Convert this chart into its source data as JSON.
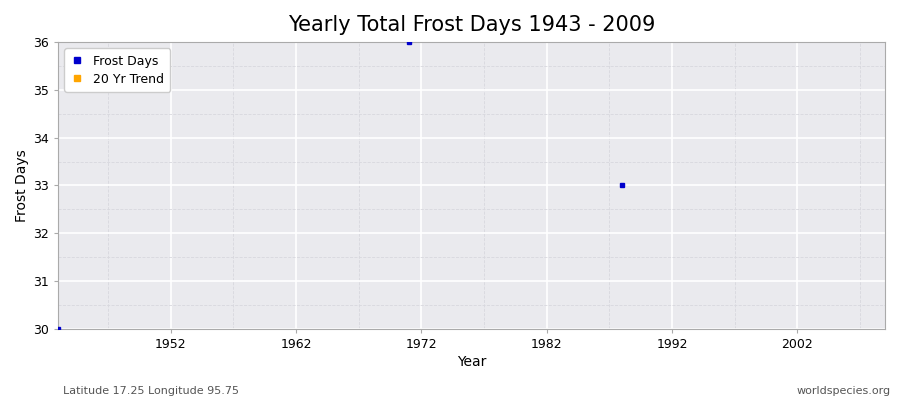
{
  "title": "Yearly Total Frost Days 1943 - 2009",
  "xlabel": "Year",
  "ylabel": "Frost Days",
  "xlim": [
    1943,
    2009
  ],
  "ylim": [
    30,
    36
  ],
  "yticks": [
    30,
    31,
    32,
    33,
    34,
    35,
    36
  ],
  "xticks": [
    1952,
    1962,
    1972,
    1982,
    1992,
    2002
  ],
  "data_points": [
    {
      "year": 1943,
      "value": 30
    },
    {
      "year": 1971,
      "value": 36
    },
    {
      "year": 1988,
      "value": 33
    }
  ],
  "point_color": "#0000cc",
  "trend_color": "#ffa500",
  "background_color": "#eaeaee",
  "major_grid_color": "#ffffff",
  "minor_grid_color": "#d8d8de",
  "spine_color": "#aaaaaa",
  "legend_labels": [
    "Frost Days",
    "20 Yr Trend"
  ],
  "legend_colors": [
    "#0000cc",
    "#ffa500"
  ],
  "footer_left": "Latitude 17.25 Longitude 95.75",
  "footer_right": "worldspecies.org",
  "title_fontsize": 15,
  "axis_label_fontsize": 10,
  "tick_fontsize": 9,
  "footer_fontsize": 8
}
